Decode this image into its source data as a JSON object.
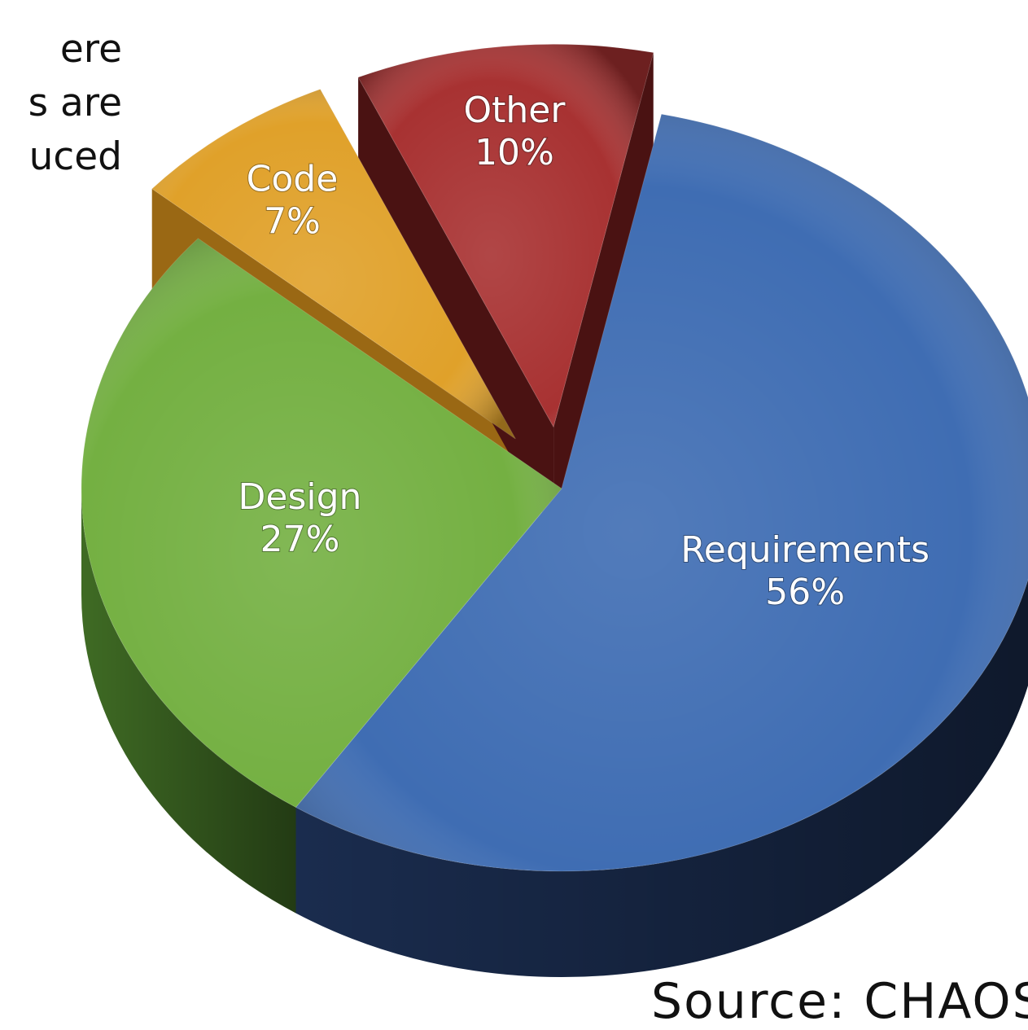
{
  "side_text": [
    "ere",
    "s are",
    "uced"
  ],
  "source_fragment": "Source: CHAOS",
  "chart_data": {
    "type": "pie",
    "title": "",
    "slices": [
      {
        "label": "Requirements",
        "value": 56,
        "display": "56%",
        "color": "#3f6db3",
        "side": "#1a2c4e",
        "exploded": false
      },
      {
        "label": "Design",
        "value": 27,
        "display": "27%",
        "color": "#74b042",
        "side": "#3f6b24",
        "exploded": false
      },
      {
        "label": "Code",
        "value": 7,
        "display": "7%",
        "color": "#e0a12a",
        "side": "#9a6814",
        "exploded": true
      },
      {
        "label": "Other",
        "value": 10,
        "display": "10%",
        "color": "#a83232",
        "side": "#4a1212",
        "exploded": true
      }
    ]
  }
}
